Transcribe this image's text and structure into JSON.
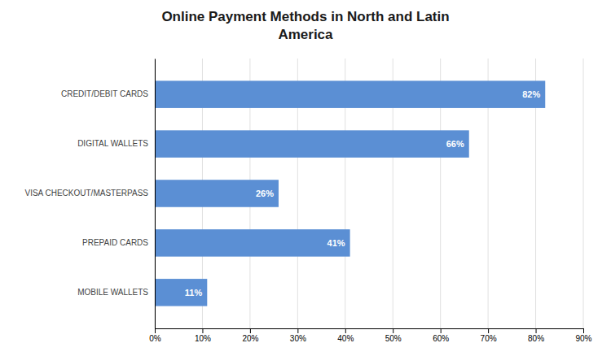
{
  "chart_data": {
    "type": "bar",
    "orientation": "horizontal",
    "title": "Online Payment Methods in North and Latin\nAmerica",
    "categories": [
      "CREDIT/DEBIT CARDS",
      "DIGITAL WALLETS",
      "VISA CHECKOUT/MASTERPASS",
      "PREPAID CARDS",
      "MOBILE WALLETS"
    ],
    "values": [
      82,
      66,
      26,
      41,
      11
    ],
    "value_labels": [
      "82%",
      "66%",
      "26%",
      "41%",
      "11%"
    ],
    "data_labels": true,
    "color": "#5B8FD4",
    "xlim": [
      0,
      90
    ],
    "xticks": [
      {
        "value": 0,
        "label": "0%"
      },
      {
        "value": 10,
        "label": "10%"
      },
      {
        "value": 20,
        "label": "20%"
      },
      {
        "value": 30,
        "label": "30%"
      },
      {
        "value": 40,
        "label": "40%"
      },
      {
        "value": 50,
        "label": "50%"
      },
      {
        "value": 60,
        "label": "60%"
      },
      {
        "value": 70,
        "label": "70%"
      },
      {
        "value": 80,
        "label": "80%"
      },
      {
        "value": 90,
        "label": "90%"
      }
    ],
    "grid": true
  }
}
